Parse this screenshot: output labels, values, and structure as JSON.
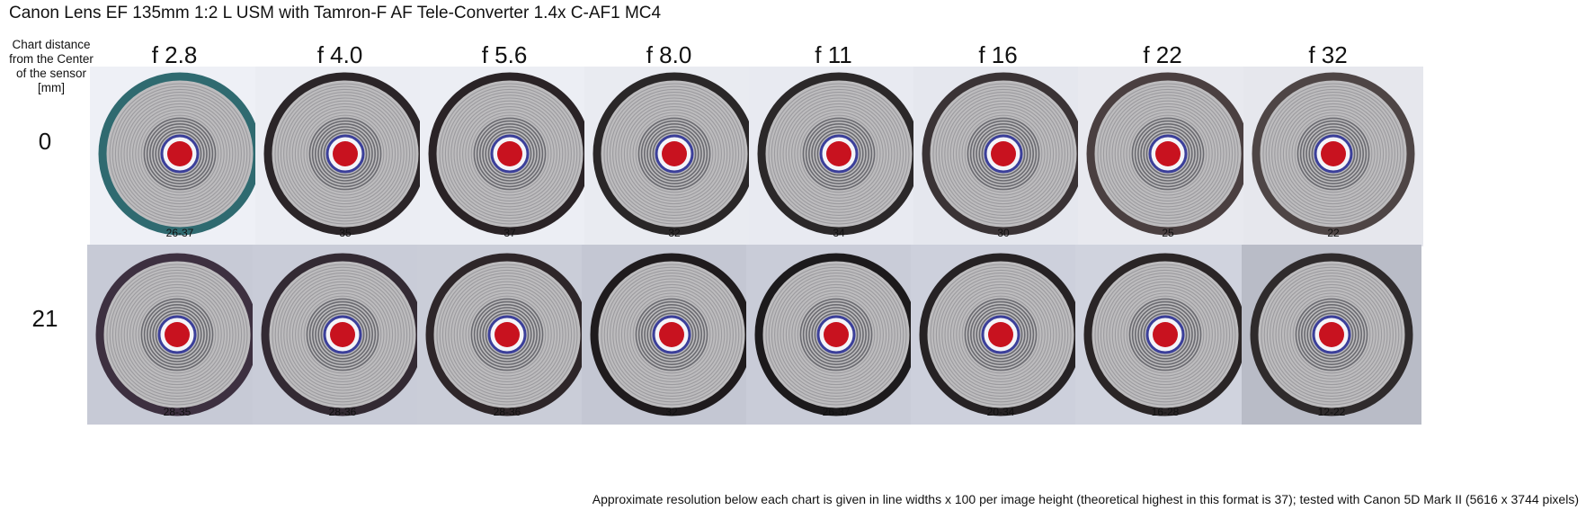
{
  "title": "Canon Lens EF 135mm 1:2 L USM with Tamron-F AF Tele-Converter 1.4x C-AF1 MC4",
  "row_header": {
    "line1": "Chart distance",
    "line2": "from the Center",
    "line3": "of the sensor",
    "line4": "[mm]"
  },
  "apertures": [
    "f 2.8",
    "f 4.0",
    "f 5.6",
    "f 8.0",
    "f 11",
    "f 16",
    "f 22",
    "f 32"
  ],
  "rows": [
    {
      "distance": "0",
      "resolutions": [
        "26-37",
        "35",
        "37",
        "32",
        "34",
        "30",
        "25",
        "22"
      ],
      "ring_colors": [
        "#2f6a70",
        "#2b2528",
        "#2a2326",
        "#2a2728",
        "#2b2829",
        "#3a3335",
        "#4a3f40",
        "#4e4545"
      ],
      "backgrounds": [
        "#eef0f6",
        "#ebedf3",
        "#eceef4",
        "#e9ebf1",
        "#e8eaf1",
        "#e5e7ee",
        "#e8e9ef",
        "#e6e7ed"
      ]
    },
    {
      "distance": "21",
      "resolutions": [
        "28-35",
        "28-36",
        "28-36",
        "32",
        "26-37",
        "20-34",
        "16-28",
        "12-22"
      ],
      "ring_colors": [
        "#3d3040",
        "#332a33",
        "#2e2629",
        "#1f1b1d",
        "#1c1a1c",
        "#262224",
        "#2a2526",
        "#2f2b2c"
      ],
      "backgrounds": [
        "#c7cad6",
        "#c9ccd8",
        "#cacdd8",
        "#c4c7d3",
        "#c9ccd8",
        "#cdd0dc",
        "#d0d3de",
        "#b9bcc7"
      ]
    }
  ],
  "footer": "Approximate resolution below each chart is given in line widths x 100 per image height (theoretical highest in this format is 37); tested with Canon 5D Mark II (5616 x 3744 pixels)"
}
